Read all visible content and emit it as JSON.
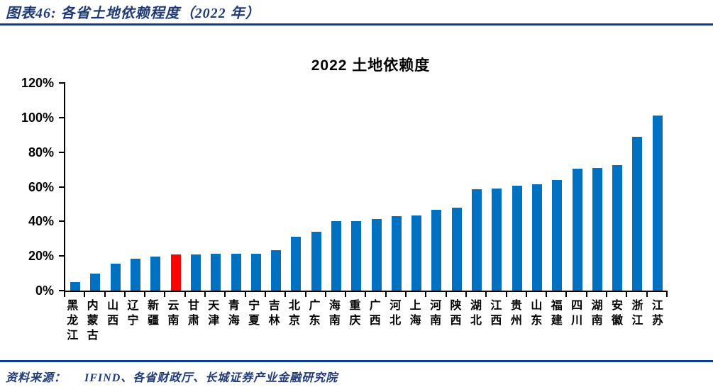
{
  "header": {
    "title": "图表46:  各省土地依赖程度（2022 年）"
  },
  "chart_data": {
    "type": "bar",
    "title": "2022 土地依赖度",
    "categories": [
      "黑龙江",
      "内蒙古",
      "山西",
      "辽宁",
      "新疆",
      "云南",
      "甘肃",
      "天津",
      "青海",
      "宁夏",
      "吉林",
      "北京",
      "广东",
      "海南",
      "重庆",
      "广西",
      "河北",
      "上海",
      "河南",
      "陕西",
      "湖北",
      "江西",
      "贵州",
      "山东",
      "福建",
      "四川",
      "湖南",
      "安徽",
      "浙江",
      "江苏"
    ],
    "values": [
      5,
      10,
      15.5,
      18.5,
      19.5,
      21,
      21,
      21.5,
      21.5,
      21.5,
      23.5,
      31,
      34,
      40,
      40,
      41.5,
      43,
      43.5,
      46.5,
      48,
      58.5,
      59,
      60.5,
      61.5,
      64,
      70.5,
      71,
      72.5,
      89,
      101
    ],
    "unit": "%",
    "xlabel": "",
    "ylabel": "",
    "ylim": [
      0,
      120
    ],
    "y_ticks": [
      0,
      20,
      40,
      60,
      80,
      100,
      120
    ],
    "y_tick_labels": [
      "0%",
      "20%",
      "40%",
      "60%",
      "80%",
      "100%",
      "120%"
    ],
    "grid": false,
    "legend": false,
    "bar_color": "#0070C0",
    "highlight_category": "云南",
    "highlight_color": "#FF0000"
  },
  "footer": {
    "source_label": "资料来源：",
    "source_text": "IFIND、各省财政厅、长城证券产业金融研究院"
  },
  "colors": {
    "accent_line": "#0C3C96",
    "header_text": "#1F3A74",
    "axis": "#000000"
  }
}
